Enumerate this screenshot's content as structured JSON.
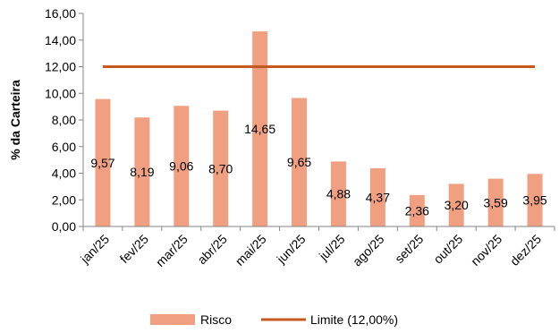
{
  "chart_data": {
    "type": "bar",
    "title": "",
    "xlabel": "",
    "ylabel": "% da Carteira",
    "ylim": [
      0,
      16
    ],
    "ytick_labels": [
      "0,00",
      "2,00",
      "4,00",
      "6,00",
      "8,00",
      "10,00",
      "12,00",
      "14,00",
      "16,00"
    ],
    "categories": [
      "jan/25",
      "fev/25",
      "mar/25",
      "abr/25",
      "mai/25",
      "jun/25",
      "jul/25",
      "ago/25",
      "set/25",
      "out/25",
      "nov/25",
      "dez/25"
    ],
    "series": [
      {
        "name": "Risco",
        "kind": "bar",
        "color": "#f0a080",
        "values": [
          9.57,
          8.19,
          9.06,
          8.7,
          14.65,
          9.65,
          4.88,
          4.37,
          2.36,
          3.2,
          3.59,
          3.95
        ],
        "data_labels": [
          "9,57",
          "8,19",
          "9,06",
          "8,70",
          "14,65",
          "9,65",
          "4,88",
          "4,37",
          "2,36",
          "3,20",
          "3,59",
          "3,95"
        ]
      },
      {
        "name": "Limite (12,00%)",
        "kind": "line",
        "color": "#c65a1e",
        "value": 12.0
      }
    ],
    "grid": false,
    "legend_position": "bottom"
  }
}
